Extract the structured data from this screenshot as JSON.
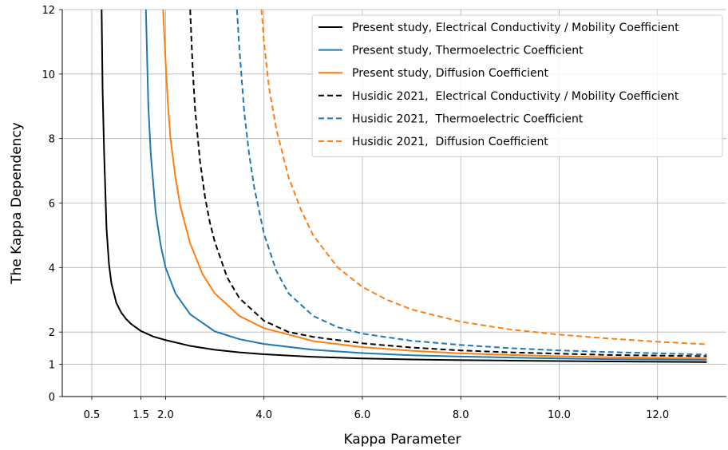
{
  "chart_data": {
    "type": "line",
    "title": "",
    "xlabel": "Kappa Parameter",
    "ylabel": "The Kappa Dependency",
    "xlim": [
      -0.1,
      13.4
    ],
    "ylim": [
      0,
      12
    ],
    "x_ticks": [
      0.5,
      1.5,
      2.0,
      4.0,
      6.0,
      8.0,
      10.0,
      12.0
    ],
    "x_tick_labels": [
      "0.5",
      "1.5",
      "2.0",
      "4.0",
      "6.0",
      "8.0",
      "10.0",
      "12.0"
    ],
    "y_ticks": [
      0,
      1,
      2,
      4,
      6,
      8,
      10,
      12
    ],
    "y_tick_labels": [
      "0",
      "1",
      "2",
      "4",
      "6",
      "8",
      "10",
      "12"
    ],
    "grid": true,
    "legend_position": "top-right",
    "series": [
      {
        "name": "Present study, Electrical Conductivity / Mobility Coefficient",
        "color": "#000000",
        "dash": "solid",
        "x": [
          0.7,
          0.72,
          0.75,
          0.8,
          0.85,
          0.9,
          1.0,
          1.1,
          1.2,
          1.3,
          1.5,
          1.75,
          2.0,
          2.5,
          3.0,
          3.5,
          4.0,
          5.0,
          6.0,
          7.0,
          8.0,
          9.0,
          10.0,
          11.0,
          12.0,
          13.0
        ],
        "y": [
          12.0,
          9.5,
          7.6,
          5.2,
          4.1,
          3.5,
          2.9,
          2.6,
          2.4,
          2.25,
          2.03,
          1.86,
          1.75,
          1.57,
          1.45,
          1.37,
          1.31,
          1.23,
          1.18,
          1.15,
          1.13,
          1.115,
          1.1,
          1.09,
          1.08,
          1.07
        ]
      },
      {
        "name": "Present study, Thermoelectric Coefficient",
        "color": "#1f77b4",
        "dash": "solid",
        "x": [
          1.6,
          1.65,
          1.7,
          1.8,
          1.9,
          2.0,
          2.2,
          2.5,
          3.0,
          3.5,
          4.0,
          5.0,
          6.0,
          7.0,
          8.0,
          9.0,
          10.0,
          11.0,
          12.0,
          13.0
        ],
        "y": [
          12.0,
          9.0,
          7.5,
          5.7,
          4.7,
          4.0,
          3.2,
          2.55,
          2.02,
          1.78,
          1.63,
          1.45,
          1.35,
          1.28,
          1.24,
          1.21,
          1.18,
          1.16,
          1.15,
          1.14
        ]
      },
      {
        "name": "Present study, Diffusion Coefficient",
        "color": "#ff7f0e",
        "dash": "solid",
        "x": [
          1.95,
          2.0,
          2.05,
          2.1,
          2.2,
          2.3,
          2.5,
          2.75,
          3.0,
          3.5,
          4.0,
          5.0,
          6.0,
          7.0,
          8.0,
          9.0,
          10.0,
          11.0,
          12.0,
          13.0
        ],
        "y": [
          12.0,
          10.4,
          9.0,
          8.0,
          6.8,
          5.9,
          4.75,
          3.8,
          3.2,
          2.5,
          2.12,
          1.72,
          1.53,
          1.42,
          1.34,
          1.29,
          1.25,
          1.22,
          1.2,
          1.18
        ]
      },
      {
        "name": "Husidic 2021,  Electrical Conductivity / Mobility Coefficient",
        "color": "#000000",
        "dash": "dashed",
        "x": [
          2.5,
          2.55,
          2.6,
          2.7,
          2.8,
          2.9,
          3.0,
          3.25,
          3.5,
          4.0,
          4.5,
          5.0,
          6.0,
          7.0,
          8.0,
          9.0,
          10.0,
          11.0,
          12.0,
          13.0
        ],
        "y": [
          12.0,
          10.2,
          8.9,
          7.3,
          6.2,
          5.4,
          4.8,
          3.7,
          3.05,
          2.35,
          2.0,
          1.85,
          1.65,
          1.52,
          1.43,
          1.37,
          1.33,
          1.29,
          1.27,
          1.25
        ]
      },
      {
        "name": "Husidic 2021,  Thermoelectric Coefficient",
        "color": "#1f77b4",
        "dash": "dashed",
        "x": [
          3.45,
          3.5,
          3.6,
          3.7,
          3.8,
          4.0,
          4.25,
          4.5,
          5.0,
          5.5,
          6.0,
          7.0,
          8.0,
          9.0,
          10.0,
          11.0,
          12.0,
          13.0
        ],
        "y": [
          12.0,
          10.8,
          8.8,
          7.5,
          6.5,
          5.05,
          3.9,
          3.2,
          2.5,
          2.15,
          1.95,
          1.73,
          1.6,
          1.5,
          1.43,
          1.38,
          1.34,
          1.3
        ]
      },
      {
        "name": "Husidic 2021,  Diffusion Coefficient",
        "color": "#ff7f0e",
        "dash": "dashed",
        "x": [
          3.95,
          4.0,
          4.1,
          4.25,
          4.5,
          4.75,
          5.0,
          5.5,
          6.0,
          6.5,
          7.0,
          8.0,
          9.0,
          10.0,
          11.0,
          12.0,
          13.0
        ],
        "y": [
          12.0,
          11.0,
          9.6,
          8.3,
          6.8,
          5.8,
          5.0,
          4.0,
          3.4,
          3.0,
          2.7,
          2.32,
          2.08,
          1.92,
          1.8,
          1.7,
          1.62
        ]
      }
    ]
  }
}
